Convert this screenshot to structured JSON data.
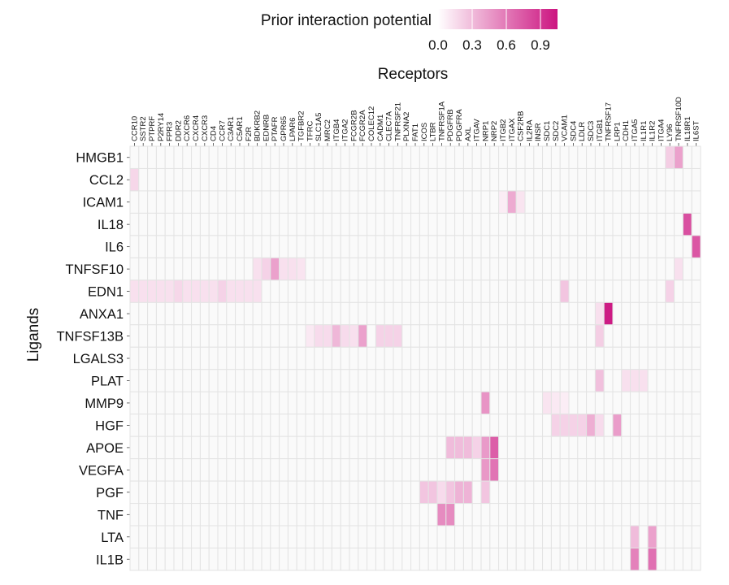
{
  "chart_data": {
    "type": "heatmap",
    "title": "",
    "xlabel": "Receptors",
    "ylabel": "Ligands",
    "legend": {
      "title": "Prior interaction potential",
      "ticks": [
        "0.0",
        "0.3",
        "0.6",
        "0.9"
      ],
      "range": [
        0,
        1.05
      ],
      "colors": {
        "low": "#ffffff",
        "high": "#cc1480"
      },
      "placement": "top"
    },
    "grid_color": "#e3e3e3",
    "empty_cell_color": "#fafafa",
    "receptors": [
      "CCR10",
      "SSTR2",
      "PTPRF",
      "P2RY14",
      "FPR3",
      "DDR2",
      "CXCR6",
      "CXCR4",
      "CXCR3",
      "CD4",
      "CCR7",
      "C3AR1",
      "C5AR1",
      "F2R",
      "BDKRB2",
      "EDNRB",
      "PTAFR",
      "GPR65",
      "LPAR6",
      "TGFBR2",
      "TFRC",
      "SLC1A5",
      "MRC2",
      "ITGB4",
      "ITGA2",
      "FCGR2B",
      "FCGR2A",
      "COLEC12",
      "CADM1",
      "CLEC7A",
      "TNFRSF21",
      "PLXNA2",
      "FAT1",
      "ICOS",
      "LTBR",
      "TNFRSF1A",
      "PDGFRB",
      "PDGFRA",
      "AXL",
      "ITGAV",
      "NRP1",
      "NRP2",
      "ITGB2",
      "ITGAX",
      "CSF2RB",
      "IL2RA",
      "INSR",
      "SDC1",
      "SDC2",
      "VCAM1",
      "SDC4",
      "LDLR",
      "SDC3",
      "ITGB1",
      "TNFRSF17",
      "LRP1",
      "CDH1",
      "ITGA5",
      "IL1R1",
      "IL1R2",
      "ITGA4",
      "LY96",
      "TNFRSF10D",
      "IL18R1",
      "IL6ST"
    ],
    "ligands": [
      "HMGB1",
      "CCL2",
      "ICAM1",
      "IL18",
      "IL6",
      "TNFSF10",
      "EDN1",
      "ANXA1",
      "TNFSF13B",
      "LGALS3",
      "PLAT",
      "MMP9",
      "HGF",
      "APOE",
      "VEGFA",
      "PGF",
      "TNF",
      "LTA",
      "IL1B"
    ],
    "values": {
      "HMGB1": {
        "LY96": 0.22,
        "TNFRSF10D": 0.42
      },
      "CCL2": {
        "CCR10": 0.18
      },
      "ICAM1": {
        "ITGB2": 0.08,
        "ITGAX": 0.38,
        "CSF2RB": 0.12
      },
      "IL18": {
        "IL18R1": 0.78
      },
      "IL6": {
        "IL6ST": 0.75
      },
      "TNFSF10": {
        "BDKRB2": 0.14,
        "EDNRB": 0.2,
        "PTAFR": 0.42,
        "GPR65": 0.14,
        "LPAR6": 0.14,
        "TGFBR2": 0.12,
        "TNFRSF10D": 0.14
      },
      "EDN1": {
        "CCR10": 0.14,
        "SSTR2": 0.14,
        "PTPRF": 0.14,
        "P2RY14": 0.14,
        "FPR3": 0.14,
        "DDR2": 0.18,
        "CXCR6": 0.14,
        "CXCR4": 0.14,
        "CXCR3": 0.14,
        "CD4": 0.14,
        "CCR7": 0.2,
        "C3AR1": 0.14,
        "C5AR1": 0.14,
        "F2R": 0.14,
        "BDKRB2": 0.14,
        "VCAM1": 0.26,
        "LY96": 0.2
      },
      "ANXA1": {
        "ITGB1": 0.14,
        "TNFRSF17": 1.02
      },
      "TNFSF13B": {
        "TFRC": 0.1,
        "SLC1A5": 0.16,
        "MRC2": 0.16,
        "ITGB4": 0.32,
        "ITGA2": 0.16,
        "FCGR2B": 0.14,
        "FCGR2A": 0.42,
        "CADM1": 0.2,
        "CLEC7A": 0.2,
        "TNFRSF21": 0.2,
        "ITGB1": 0.22
      },
      "LGALS3": {},
      "PLAT": {
        "ITGB1": 0.28,
        "CDH1": 0.14,
        "ITGA5": 0.14,
        "IL1R1": 0.14
      },
      "MMP9": {
        "NRP1": 0.48,
        "SDC1": 0.12,
        "SDC2": 0.1,
        "VCAM1": 0.08
      },
      "HGF": {
        "SDC2": 0.2,
        "VCAM1": 0.2,
        "SDC4": 0.2,
        "LDLR": 0.2,
        "SDC3": 0.36,
        "ITGB1": 0.16,
        "LRP1": 0.44
      },
      "APOE": {
        "PDGFRB": 0.3,
        "PDGFRA": 0.3,
        "AXL": 0.3,
        "ITGAV": 0.2,
        "NRP1": 0.45,
        "NRP2": 0.72
      },
      "VEGFA": {
        "NRP1": 0.46,
        "NRP2": 0.62
      },
      "PGF": {
        "ICOS": 0.26,
        "LTBR": 0.26,
        "TNFRSF1A": 0.16,
        "PDGFRB": 0.26,
        "PDGFRA": 0.34,
        "AXL": 0.34,
        "NRP1": 0.26
      },
      "TNF": {
        "TNFRSF1A": 0.52,
        "PDGFRB": 0.52
      },
      "LTA": {
        "IL1R2": 0.42,
        "ITGA5": 0.3
      },
      "IL1B": {
        "IL1R2": 0.64,
        "ITGA5": 0.56
      }
    }
  }
}
